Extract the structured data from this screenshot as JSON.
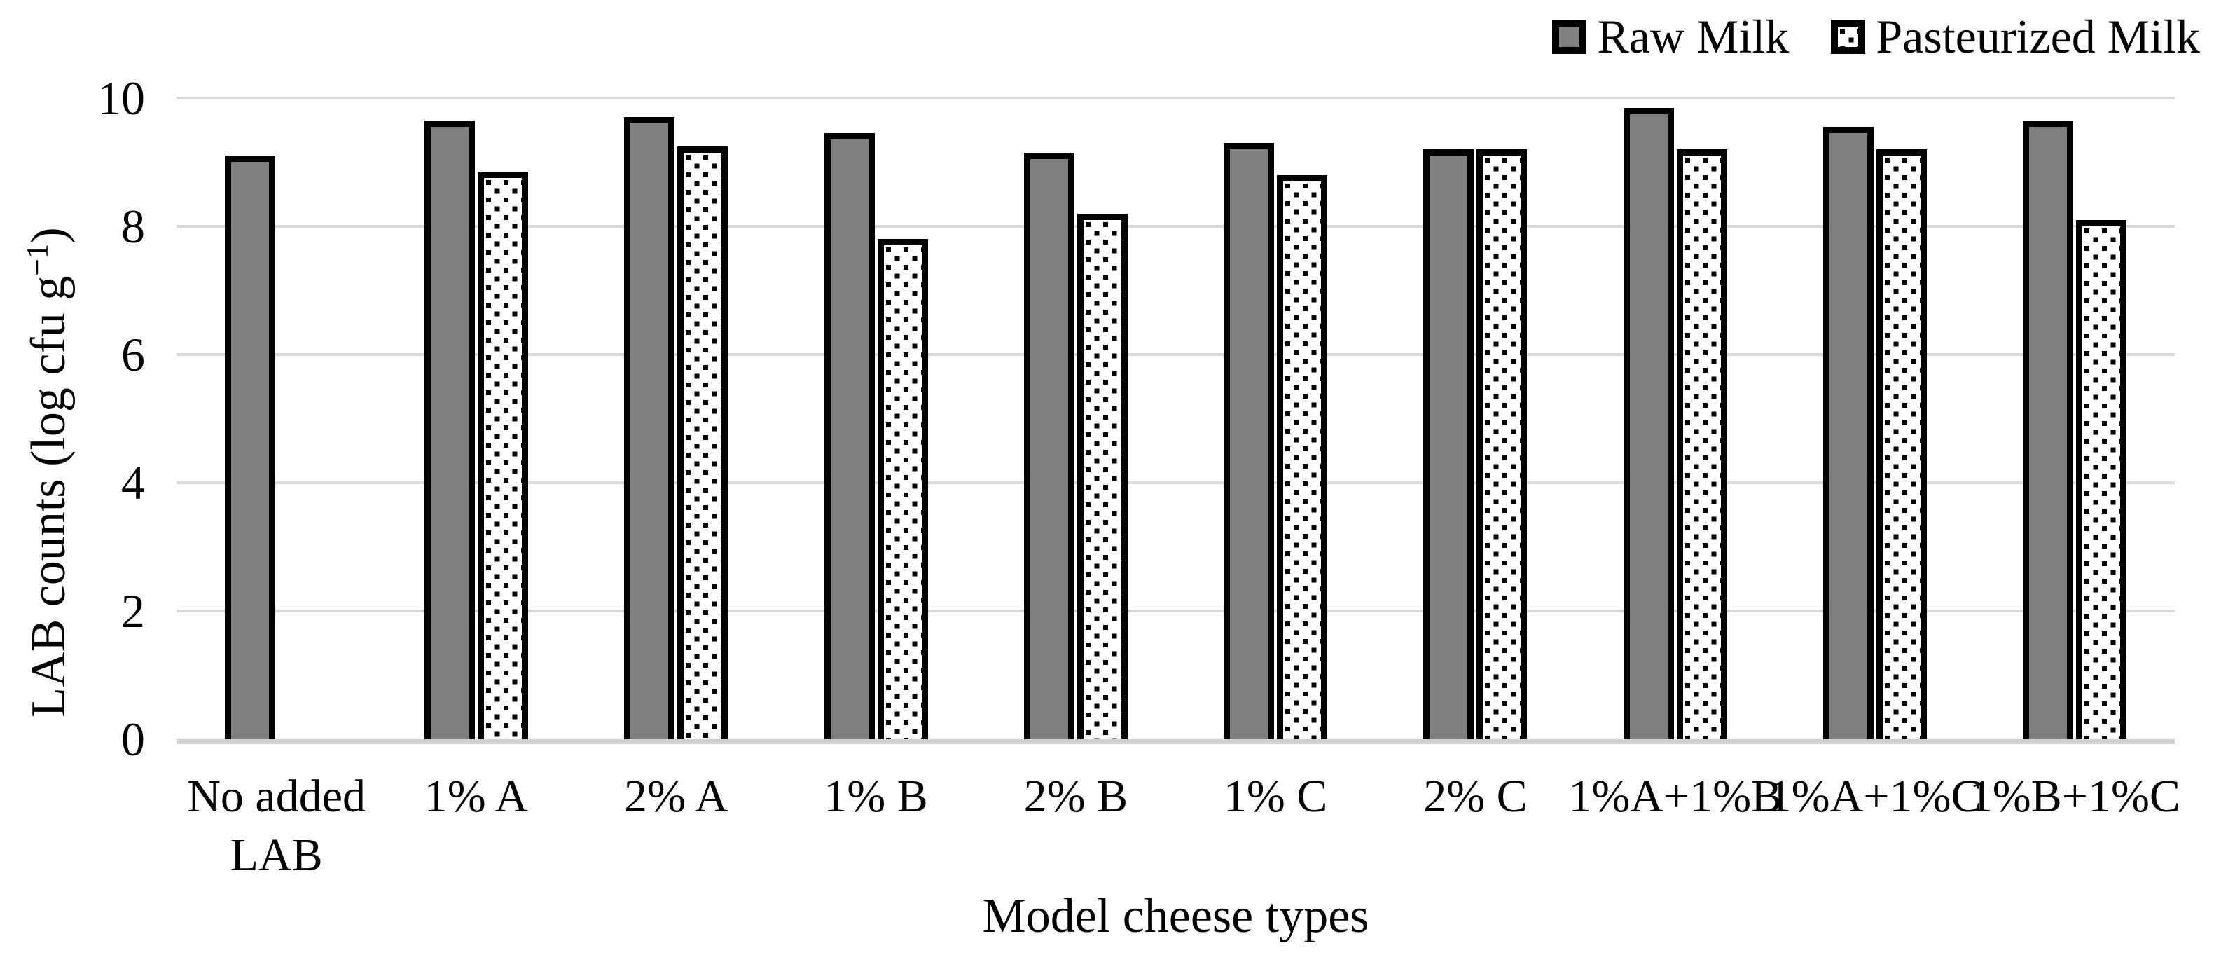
{
  "figure": {
    "background": "#ffffff"
  },
  "colors": {
    "bar_gray": "#7f7f7f",
    "bar_outline": "#000000",
    "pattern_dot": "#000000",
    "gridline": "#d9d9d9",
    "axis_line": "#d2d2d2",
    "text": "#000000"
  },
  "legend": {
    "items": [
      {
        "label": "Raw Milk",
        "swatch": "solid-gray-square"
      },
      {
        "label": "Pasteurized Milk",
        "swatch": "dotted-square"
      }
    ]
  },
  "chart_data": {
    "type": "bar",
    "title": "",
    "xlabel": "Model cheese types",
    "ylabel": "LAB counts (log cfu g−1)",
    "ylabel_main": "LAB counts (log cfu g",
    "ylabel_sup": "−1",
    "ylabel_end": ")",
    "categories": [
      "No added\nLAB",
      "1% A",
      "2% A",
      "1% B",
      "2% B",
      "1% C",
      "2% C",
      "1%A+1%B",
      "1%A+1%C",
      "1%B+1%C"
    ],
    "series": [
      {
        "name": "Raw Milk",
        "pattern": "solid",
        "fill": "#7f7f7f",
        "values": [
          9.1,
          9.65,
          9.7,
          9.45,
          9.15,
          9.3,
          9.2,
          9.85,
          9.55,
          9.65
        ]
      },
      {
        "name": "Pasteurized Milk",
        "pattern": "dots",
        "fill": "#ffffff",
        "values": [
          null,
          8.85,
          9.25,
          7.8,
          8.2,
          8.8,
          9.2,
          9.2,
          9.2,
          8.1
        ]
      }
    ],
    "ylim": [
      0,
      10
    ],
    "yticks": [
      0,
      2,
      4,
      6,
      8,
      10
    ],
    "grid": true,
    "legend_position": "top-right"
  }
}
